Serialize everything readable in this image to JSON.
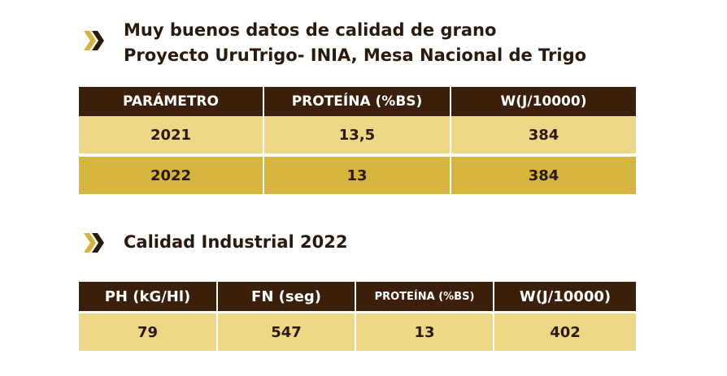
{
  "section1": {
    "title_line1": "Muy buenos datos de calidad de grano",
    "title_line2": "Proyecto UruTrigo- INIA, Mesa Nacional de Trigo",
    "icon": "double-chevron-right-icon",
    "headers": [
      "PARÁMETRO",
      "PROTEÍNA (%BS)",
      "W(J/10000)"
    ],
    "rows": [
      [
        "2021",
        "13,5",
        "384"
      ],
      [
        "2022",
        "13",
        "384"
      ]
    ]
  },
  "section2": {
    "title": "Calidad Industrial 2022",
    "icon": "double-chevron-right-icon",
    "headers": [
      "PH (kG/Hl)",
      "FN (seg)",
      "PROTEÍNA (%BS)",
      "W(J/10000)"
    ],
    "rows": [
      [
        "79",
        "547",
        "13",
        "402"
      ]
    ]
  },
  "colors": {
    "header_bg": "#3b1f0a",
    "row_light": "#eed888",
    "row_dark": "#d6b53e",
    "chevron_dark": "#2b1a0c",
    "chevron_gold": "#d9b23a"
  }
}
